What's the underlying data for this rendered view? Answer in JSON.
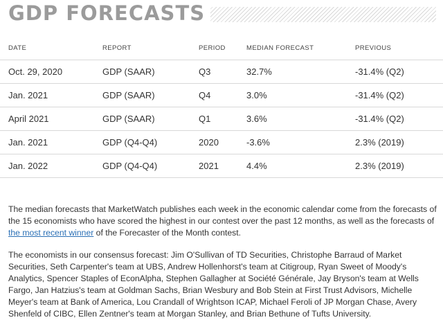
{
  "title": "GDP FORECASTS",
  "table": {
    "headers": [
      "DATE",
      "REPORT",
      "PERIOD",
      "MEDIAN FORECAST",
      "PREVIOUS"
    ],
    "rows": [
      [
        "Oct. 29, 2020",
        "GDP (SAAR)",
        "Q3",
        "32.7%",
        "-31.4% (Q2)"
      ],
      [
        "Jan. 2021",
        "GDP (SAAR)",
        "Q4",
        "3.0%",
        "-31.4% (Q2)"
      ],
      [
        "April 2021",
        "GDP (SAAR)",
        "Q1",
        "3.6%",
        "-31.4% (Q2)"
      ],
      [
        "Jan. 2021",
        "GDP (Q4-Q4)",
        "2020",
        "-3.6%",
        "2.3% (2019)"
      ],
      [
        "Jan. 2022",
        "GDP (Q4-Q4)",
        "2021",
        "4.4%",
        "2.3% (2019)"
      ]
    ]
  },
  "paragraph1": {
    "before": "The median forecasts that MarketWatch publishes each week in the economic calendar come from the forecasts of the 15 economists who have scored the highest in our contest over the past 12 months, as well as the forecasts of ",
    "link": "the most recent winner",
    "after": " of the Forecaster of the Month contest."
  },
  "paragraph2": "The economists in our consensus forecast: Jim O'Sullivan of TD Securities, Christophe Barraud of Market Securities, Seth Carpenter's team at UBS, Andrew Hollenhorst's team at Citigroup, Ryan Sweet of Moody's Analytics, Spencer Staples of EconAlpha, Stephen Gallagher at Société Générale, Jay Bryson's team at Wells Fargo, Jan Hatzius's team at Goldman Sachs, Brian Wesbury and Bob Stein at First Trust Advisors, Michelle Meyer's team at Bank of America, Lou Crandall of Wrightson ICAP, Michael Feroli of JP Morgan Chase, Avery Shenfeld of CIBC, Ellen Zentner's team at Morgan Stanley, and Brian Bethune of Tufts University."
}
